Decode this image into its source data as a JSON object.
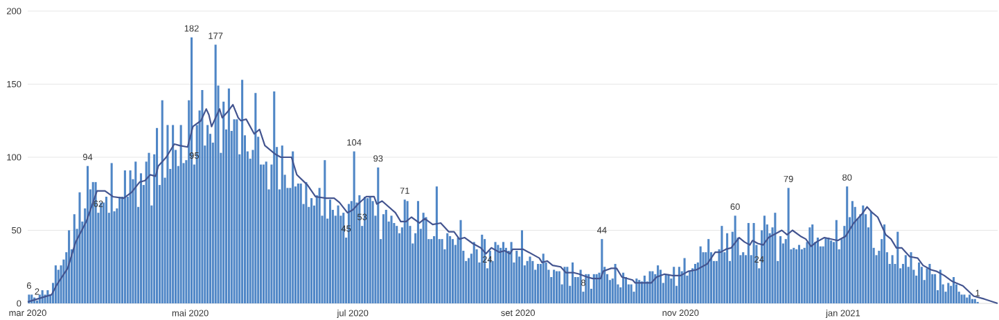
{
  "chart_data": {
    "type": "bar",
    "x": [
      "2020-03-01",
      "2020-03-02",
      "2020-03-03",
      "2020-03-04",
      "2020-03-05",
      "2020-03-06",
      "2020-03-07",
      "2020-03-08",
      "2020-03-09",
      "2020-03-10",
      "2020-03-11",
      "2020-03-12",
      "2020-03-13",
      "2020-03-14",
      "2020-03-15",
      "2020-03-16",
      "2020-03-17",
      "2020-03-18",
      "2020-03-19",
      "2020-03-20",
      "2020-03-21",
      "2020-03-22",
      "2020-03-23",
      "2020-03-24",
      "2020-03-25",
      "2020-03-26",
      "2020-03-27",
      "2020-03-28",
      "2020-03-29",
      "2020-03-30",
      "2020-03-31",
      "2020-04-01",
      "2020-04-02",
      "2020-04-03",
      "2020-04-04",
      "2020-04-05",
      "2020-04-06",
      "2020-04-07",
      "2020-04-08",
      "2020-04-09",
      "2020-04-10",
      "2020-04-11",
      "2020-04-12",
      "2020-04-13",
      "2020-04-14",
      "2020-04-15",
      "2020-04-16",
      "2020-04-17",
      "2020-04-18",
      "2020-04-19",
      "2020-04-20",
      "2020-04-21",
      "2020-04-22",
      "2020-04-23",
      "2020-04-24",
      "2020-04-25",
      "2020-04-26",
      "2020-04-27",
      "2020-04-28",
      "2020-04-29",
      "2020-04-30",
      "2020-05-01",
      "2020-05-02",
      "2020-05-03",
      "2020-05-04",
      "2020-05-05",
      "2020-05-06",
      "2020-05-07",
      "2020-05-08",
      "2020-05-09",
      "2020-05-10",
      "2020-05-11",
      "2020-05-12",
      "2020-05-13",
      "2020-05-14",
      "2020-05-15",
      "2020-05-16",
      "2020-05-17",
      "2020-05-18",
      "2020-05-19",
      "2020-05-20",
      "2020-05-21",
      "2020-05-22",
      "2020-05-23",
      "2020-05-24",
      "2020-05-25",
      "2020-05-26",
      "2020-05-27",
      "2020-05-28",
      "2020-05-29",
      "2020-05-30",
      "2020-05-31",
      "2020-06-01",
      "2020-06-02",
      "2020-06-03",
      "2020-06-04",
      "2020-06-05",
      "2020-06-06",
      "2020-06-07",
      "2020-06-08",
      "2020-06-09",
      "2020-06-10",
      "2020-06-11",
      "2020-06-12",
      "2020-06-13",
      "2020-06-14",
      "2020-06-15",
      "2020-06-16",
      "2020-06-17",
      "2020-06-18",
      "2020-06-19",
      "2020-06-20",
      "2020-06-21",
      "2020-06-22",
      "2020-06-23",
      "2020-06-24",
      "2020-06-25",
      "2020-06-26",
      "2020-06-27",
      "2020-06-28",
      "2020-06-29",
      "2020-06-30",
      "2020-07-01",
      "2020-07-02",
      "2020-07-03",
      "2020-07-04",
      "2020-07-05",
      "2020-07-06",
      "2020-07-07",
      "2020-07-08",
      "2020-07-09",
      "2020-07-10",
      "2020-07-11",
      "2020-07-12",
      "2020-07-13",
      "2020-07-14",
      "2020-07-15",
      "2020-07-16",
      "2020-07-17",
      "2020-07-18",
      "2020-07-19",
      "2020-07-20",
      "2020-07-21",
      "2020-07-22",
      "2020-07-23",
      "2020-07-24",
      "2020-07-25",
      "2020-07-26",
      "2020-07-27",
      "2020-07-28",
      "2020-07-29",
      "2020-07-30",
      "2020-07-31",
      "2020-08-01",
      "2020-08-02",
      "2020-08-03",
      "2020-08-04",
      "2020-08-05",
      "2020-08-06",
      "2020-08-07",
      "2020-08-08",
      "2020-08-09",
      "2020-08-10",
      "2020-08-11",
      "2020-08-12",
      "2020-08-13",
      "2020-08-14",
      "2020-08-15",
      "2020-08-16",
      "2020-08-17",
      "2020-08-18",
      "2020-08-19",
      "2020-08-20",
      "2020-08-21",
      "2020-08-22",
      "2020-08-23",
      "2020-08-24",
      "2020-08-25",
      "2020-08-26",
      "2020-08-27",
      "2020-08-28",
      "2020-08-29",
      "2020-08-30",
      "2020-08-31",
      "2020-09-01",
      "2020-09-02",
      "2020-09-03",
      "2020-09-04",
      "2020-09-05",
      "2020-09-06",
      "2020-09-07",
      "2020-09-08",
      "2020-09-09",
      "2020-09-10",
      "2020-09-11",
      "2020-09-12",
      "2020-09-13",
      "2020-09-14",
      "2020-09-15",
      "2020-09-16",
      "2020-09-17",
      "2020-09-18",
      "2020-09-19",
      "2020-09-20",
      "2020-09-21",
      "2020-09-22",
      "2020-09-23",
      "2020-09-24",
      "2020-09-25",
      "2020-09-26",
      "2020-09-27",
      "2020-09-28",
      "2020-09-29",
      "2020-09-30",
      "2020-10-01",
      "2020-10-02",
      "2020-10-03",
      "2020-10-04",
      "2020-10-05",
      "2020-10-06",
      "2020-10-07",
      "2020-10-08",
      "2020-10-09",
      "2020-10-10",
      "2020-10-11",
      "2020-10-12",
      "2020-10-13",
      "2020-10-14",
      "2020-10-15",
      "2020-10-16",
      "2020-10-17",
      "2020-10-18",
      "2020-10-19",
      "2020-10-20",
      "2020-10-21",
      "2020-10-22",
      "2020-10-23",
      "2020-10-24",
      "2020-10-25",
      "2020-10-26",
      "2020-10-27",
      "2020-10-28",
      "2020-10-29",
      "2020-10-30",
      "2020-10-31",
      "2020-11-01",
      "2020-11-02",
      "2020-11-03",
      "2020-11-04",
      "2020-11-05",
      "2020-11-06",
      "2020-11-07",
      "2020-11-08",
      "2020-11-09",
      "2020-11-10",
      "2020-11-11",
      "2020-11-12",
      "2020-11-13",
      "2020-11-14",
      "2020-11-15",
      "2020-11-16",
      "2020-11-17",
      "2020-11-18",
      "2020-11-19",
      "2020-11-20",
      "2020-11-21",
      "2020-11-22",
      "2020-11-23",
      "2020-11-24",
      "2020-11-25",
      "2020-11-26",
      "2020-11-27",
      "2020-11-28",
      "2020-11-29",
      "2020-11-30",
      "2020-12-01",
      "2020-12-02",
      "2020-12-03",
      "2020-12-04",
      "2020-12-05",
      "2020-12-06",
      "2020-12-07",
      "2020-12-08",
      "2020-12-09",
      "2020-12-10",
      "2020-12-11",
      "2020-12-12",
      "2020-12-13",
      "2020-12-14",
      "2020-12-15",
      "2020-12-16",
      "2020-12-17",
      "2020-12-18",
      "2020-12-19",
      "2020-12-20",
      "2020-12-21",
      "2020-12-22",
      "2020-12-23",
      "2020-12-24",
      "2020-12-25",
      "2020-12-26",
      "2020-12-27",
      "2020-12-28",
      "2020-12-29",
      "2020-12-30",
      "2020-12-31",
      "2021-01-01",
      "2021-01-02",
      "2021-01-03",
      "2021-01-04",
      "2021-01-05",
      "2021-01-06",
      "2021-01-07",
      "2021-01-08",
      "2021-01-09",
      "2021-01-10",
      "2021-01-11",
      "2021-01-12",
      "2021-01-13",
      "2021-01-14",
      "2021-01-15",
      "2021-01-16",
      "2021-01-17",
      "2021-01-18",
      "2021-01-19",
      "2021-01-20",
      "2021-01-21",
      "2021-01-22",
      "2021-01-23",
      "2021-01-24",
      "2021-01-25",
      "2021-01-26",
      "2021-01-27",
      "2021-01-28",
      "2021-01-29",
      "2021-01-30",
      "2021-01-31",
      "2021-02-01",
      "2021-02-02",
      "2021-02-03",
      "2021-02-04",
      "2021-02-05",
      "2021-02-06",
      "2021-02-07",
      "2021-02-08",
      "2021-02-09",
      "2021-02-10",
      "2021-02-11",
      "2021-02-12",
      "2021-02-13",
      "2021-02-14",
      "2021-02-15",
      "2021-02-16",
      "2021-02-17",
      "2021-02-18",
      "2021-02-19",
      "2021-02-20"
    ],
    "series": [
      {
        "color": "#4f86c6",
        "values": [
          6,
          6,
          4,
          2,
          6,
          9,
          6,
          9,
          6,
          14,
          26,
          23,
          26,
          30,
          35,
          50,
          37,
          61,
          51,
          76,
          56,
          65,
          94,
          78,
          83,
          83,
          62,
          69,
          69,
          73,
          62,
          96,
          63,
          65,
          73,
          73,
          91,
          73,
          91,
          85,
          97,
          66,
          89,
          81,
          97,
          103,
          67,
          102,
          120,
          81,
          139,
          86,
          122,
          92,
          122,
          105,
          94,
          122,
          96,
          98,
          139,
          182,
          95,
          122,
          132,
          146,
          108,
          122,
          116,
          110,
          177,
          149,
          103,
          138,
          119,
          147,
          118,
          126,
          126,
          102,
          153,
          115,
          104,
          99,
          105,
          144,
          114,
          95,
          95,
          97,
          78,
          95,
          145,
          107,
          78,
          108,
          88,
          79,
          79,
          104,
          80,
          82,
          82,
          68,
          83,
          66,
          72,
          67,
          74,
          79,
          60,
          98,
          58,
          71,
          64,
          60,
          67,
          60,
          62,
          45,
          68,
          70,
          104,
          69,
          74,
          53,
          73,
          72,
          73,
          70,
          60,
          93,
          44,
          61,
          64,
          56,
          60,
          55,
          53,
          48,
          52,
          71,
          70,
          53,
          41,
          48,
          70,
          51,
          62,
          59,
          44,
          44,
          46,
          80,
          44,
          44,
          37,
          48,
          46,
          44,
          40,
          45,
          57,
          36,
          29,
          31,
          34,
          42,
          37,
          28,
          47,
          44,
          24,
          36,
          29,
          42,
          40,
          38,
          42,
          38,
          36,
          42,
          28,
          36,
          32,
          50,
          26,
          29,
          32,
          29,
          23,
          27,
          27,
          34,
          28,
          23,
          18,
          23,
          22,
          22,
          13,
          25,
          25,
          12,
          28,
          18,
          18,
          23,
          8,
          20,
          20,
          10,
          20,
          20,
          21,
          44,
          25,
          20,
          16,
          17,
          27,
          13,
          11,
          21,
          18,
          13,
          13,
          8,
          17,
          16,
          15,
          19,
          15,
          22,
          22,
          20,
          26,
          23,
          14,
          20,
          20,
          17,
          25,
          12,
          25,
          22,
          31,
          19,
          22,
          24,
          27,
          28,
          39,
          35,
          35,
          44,
          35,
          29,
          29,
          37,
          53,
          35,
          48,
          29,
          49,
          60,
          45,
          33,
          35,
          33,
          55,
          33,
          55,
          40,
          24,
          50,
          60,
          54,
          48,
          52,
          62,
          29,
          46,
          41,
          44,
          79,
          37,
          38,
          37,
          40,
          37,
          38,
          42,
          52,
          54,
          42,
          45,
          39,
          39,
          45,
          45,
          43,
          42,
          57,
          37,
          44,
          53,
          80,
          59,
          70,
          66,
          58,
          61,
          67,
          61,
          52,
          63,
          38,
          33,
          36,
          44,
          54,
          35,
          27,
          33,
          27,
          49,
          24,
          27,
          33,
          25,
          35,
          23,
          19,
          28,
          25,
          16,
          24,
          27,
          20,
          20,
          9,
          23,
          13,
          8,
          14,
          12,
          18,
          13,
          8,
          6,
          6,
          4,
          6,
          3,
          3,
          1
        ],
        "value_labels": [
          "6",
          null,
          null,
          "2",
          null,
          null,
          null,
          null,
          null,
          null,
          null,
          null,
          null,
          null,
          null,
          null,
          null,
          null,
          null,
          null,
          null,
          null,
          "94",
          null,
          null,
          null,
          "62",
          null,
          null,
          null,
          null,
          null,
          null,
          null,
          null,
          null,
          null,
          null,
          null,
          null,
          null,
          null,
          null,
          null,
          null,
          null,
          null,
          null,
          null,
          null,
          null,
          null,
          null,
          null,
          null,
          null,
          null,
          null,
          null,
          null,
          null,
          "182",
          "95",
          null,
          null,
          null,
          null,
          null,
          null,
          null,
          "177",
          null,
          null,
          null,
          null,
          null,
          null,
          null,
          null,
          null,
          null,
          null,
          null,
          null,
          null,
          null,
          null,
          null,
          null,
          null,
          null,
          null,
          null,
          null,
          null,
          null,
          null,
          null,
          null,
          null,
          null,
          null,
          null,
          null,
          null,
          null,
          null,
          null,
          null,
          null,
          null,
          null,
          null,
          null,
          null,
          null,
          null,
          null,
          null,
          "45",
          null,
          null,
          "104",
          null,
          null,
          "53",
          null,
          null,
          null,
          null,
          null,
          "93",
          null,
          null,
          null,
          null,
          null,
          null,
          null,
          null,
          null,
          "71",
          null,
          null,
          null,
          null,
          null,
          null,
          null,
          null,
          null,
          null,
          null,
          null,
          null,
          null,
          null,
          null,
          null,
          null,
          null,
          null,
          null,
          null,
          null,
          null,
          null,
          null,
          null,
          null,
          null,
          null,
          "24",
          null,
          null,
          null,
          null,
          null,
          null,
          null,
          null,
          null,
          null,
          null,
          null,
          null,
          null,
          null,
          null,
          null,
          null,
          null,
          null,
          null,
          null,
          null,
          null,
          null,
          null,
          null,
          null,
          null,
          null,
          null,
          null,
          null,
          null,
          null,
          "8",
          null,
          null,
          null,
          null,
          null,
          null,
          "44",
          null,
          null,
          null,
          null,
          null,
          null,
          null,
          null,
          null,
          null,
          null,
          null,
          null,
          null,
          null,
          null,
          null,
          null,
          null,
          null,
          null,
          null,
          null,
          null,
          null,
          null,
          null,
          null,
          null,
          null,
          null,
          null,
          null,
          null,
          null,
          null,
          null,
          null,
          null,
          null,
          null,
          null,
          null,
          null,
          null,
          null,
          null,
          null,
          null,
          "60",
          null,
          null,
          null,
          null,
          null,
          null,
          null,
          null,
          "24",
          null,
          null,
          null,
          null,
          null,
          null,
          null,
          null,
          null,
          null,
          "79",
          null,
          null,
          null,
          null,
          null,
          null,
          null,
          null,
          null,
          null,
          null,
          null,
          null,
          null,
          null,
          null,
          null,
          null,
          null,
          null,
          null,
          "80",
          null,
          null,
          null,
          null,
          null,
          null,
          null,
          null,
          null,
          null,
          null,
          null,
          null,
          null,
          null,
          null,
          null,
          null,
          null,
          null,
          null,
          null,
          null,
          null,
          null,
          null,
          null,
          null,
          null,
          null,
          null,
          null,
          null,
          null,
          null,
          null,
          null,
          null,
          null,
          null,
          null,
          null,
          null,
          null,
          null,
          null,
          null,
          null,
          "1"
        ]
      },
      {
        "type": "line",
        "color": "#43548f",
        "x": [
          "2020-03-01",
          "2020-03-10",
          "2020-03-12",
          "2020-03-16",
          "2020-03-19",
          "2020-03-23",
          "2020-03-27",
          "2020-03-30",
          "2020-04-02",
          "2020-04-06",
          "2020-04-09",
          "2020-04-12",
          "2020-04-14",
          "2020-04-16",
          "2020-04-18",
          "2020-04-19",
          "2020-04-22",
          "2020-04-25",
          "2020-04-27",
          "2020-04-30",
          "2020-05-02",
          "2020-05-05",
          "2020-05-07",
          "2020-05-08",
          "2020-05-09",
          "2020-05-12",
          "2020-05-13",
          "2020-05-15",
          "2020-05-17",
          "2020-05-19",
          "2020-05-20",
          "2020-05-22",
          "2020-05-25",
          "2020-05-27",
          "2020-05-29",
          "2020-06-02",
          "2020-06-04",
          "2020-06-08",
          "2020-06-10",
          "2020-06-14",
          "2020-06-17",
          "2020-06-21",
          "2020-06-24",
          "2020-06-26",
          "2020-06-29",
          "2020-07-01",
          "2020-07-03",
          "2020-07-06",
          "2020-07-09",
          "2020-07-10",
          "2020-07-12",
          "2020-07-17",
          "2020-07-19",
          "2020-07-21",
          "2020-07-23",
          "2020-07-26",
          "2020-07-28",
          "2020-07-31",
          "2020-08-03",
          "2020-08-06",
          "2020-08-08",
          "2020-08-10",
          "2020-08-12",
          "2020-08-15",
          "2020-08-18",
          "2020-08-20",
          "2020-08-22",
          "2020-08-25",
          "2020-08-27",
          "2020-08-29",
          "2020-08-30",
          "2020-09-03",
          "2020-09-07",
          "2020-09-09",
          "2020-09-10",
          "2020-09-12",
          "2020-09-14",
          "2020-09-17",
          "2020-09-19",
          "2020-09-22",
          "2020-09-24",
          "2020-09-27",
          "2020-09-29",
          "2020-10-02",
          "2020-10-03",
          "2020-10-06",
          "2020-10-08",
          "2020-10-10",
          "2020-10-14",
          "2020-10-15",
          "2020-10-19",
          "2020-10-21",
          "2020-10-23",
          "2020-10-26",
          "2020-10-29",
          "2020-11-01",
          "2020-11-04",
          "2020-11-07",
          "2020-11-11",
          "2020-11-14",
          "2020-11-16",
          "2020-11-18",
          "2020-11-20",
          "2020-11-23",
          "2020-11-25",
          "2020-11-27",
          "2020-11-28",
          "2020-11-30",
          "2020-12-02",
          "2020-12-04",
          "2020-12-06",
          "2020-12-09",
          "2020-12-11",
          "2020-12-13",
          "2020-12-16",
          "2020-12-18",
          "2020-12-20",
          "2020-12-22",
          "2020-12-25",
          "2020-12-30",
          "2021-01-02",
          "2021-01-05",
          "2021-01-08",
          "2021-01-10",
          "2021-01-12",
          "2021-01-14",
          "2021-01-17",
          "2021-01-19",
          "2021-01-21",
          "2021-01-23",
          "2021-01-26",
          "2021-01-29",
          "2021-01-31",
          "2021-02-03",
          "2021-02-05",
          "2021-02-08",
          "2021-02-11",
          "2021-02-15",
          "2021-02-19",
          "2021-02-23",
          "2021-02-28"
        ],
        "values": [
          1,
          6,
          13,
          24,
          42,
          56,
          77,
          77,
          73,
          72,
          76,
          83,
          84,
          88,
          87,
          94,
          100,
          109,
          108,
          107,
          121,
          125,
          133,
          129,
          121,
          133,
          127,
          131,
          136,
          127,
          125,
          126,
          116,
          119,
          108,
          102,
          100,
          100,
          88,
          81,
          73,
          72,
          72,
          69,
          62,
          64,
          68,
          73,
          73,
          68,
          70,
          62,
          56,
          56,
          59,
          55,
          58,
          54,
          55,
          49,
          49,
          44,
          45,
          41,
          38,
          34,
          38,
          35,
          36,
          34,
          37,
          37,
          33,
          31,
          28,
          29,
          26,
          25,
          21,
          21,
          20,
          18,
          17,
          17,
          22,
          24,
          24,
          18,
          16,
          14,
          14,
          14,
          18,
          20,
          19,
          19,
          22,
          23,
          27,
          35,
          35,
          37,
          38,
          45,
          42,
          40,
          43,
          41,
          40,
          45,
          47,
          50,
          47,
          50,
          46,
          44,
          39,
          42,
          45,
          43,
          46,
          55,
          61,
          66,
          62,
          59,
          47,
          44,
          38,
          38,
          32,
          31,
          26,
          23,
          22,
          19,
          15,
          12,
          5,
          3,
          0
        ]
      }
    ],
    "xlim": [
      "2020-03-01",
      "2021-02-28"
    ],
    "xticks": [
      {
        "value": "2020-03-01",
        "label": "mar 2020"
      },
      {
        "value": "2020-05-01",
        "label": "mai 2020"
      },
      {
        "value": "2020-07-01",
        "label": "jul 2020"
      },
      {
        "value": "2020-09-01",
        "label": "set 2020"
      },
      {
        "value": "2020-11-01",
        "label": "nov 2020"
      },
      {
        "value": "2021-01-01",
        "label": "jan 2021"
      }
    ],
    "ylim": [
      0,
      200
    ],
    "yticks": [
      0,
      50,
      100,
      150,
      200
    ],
    "grid": "y"
  }
}
